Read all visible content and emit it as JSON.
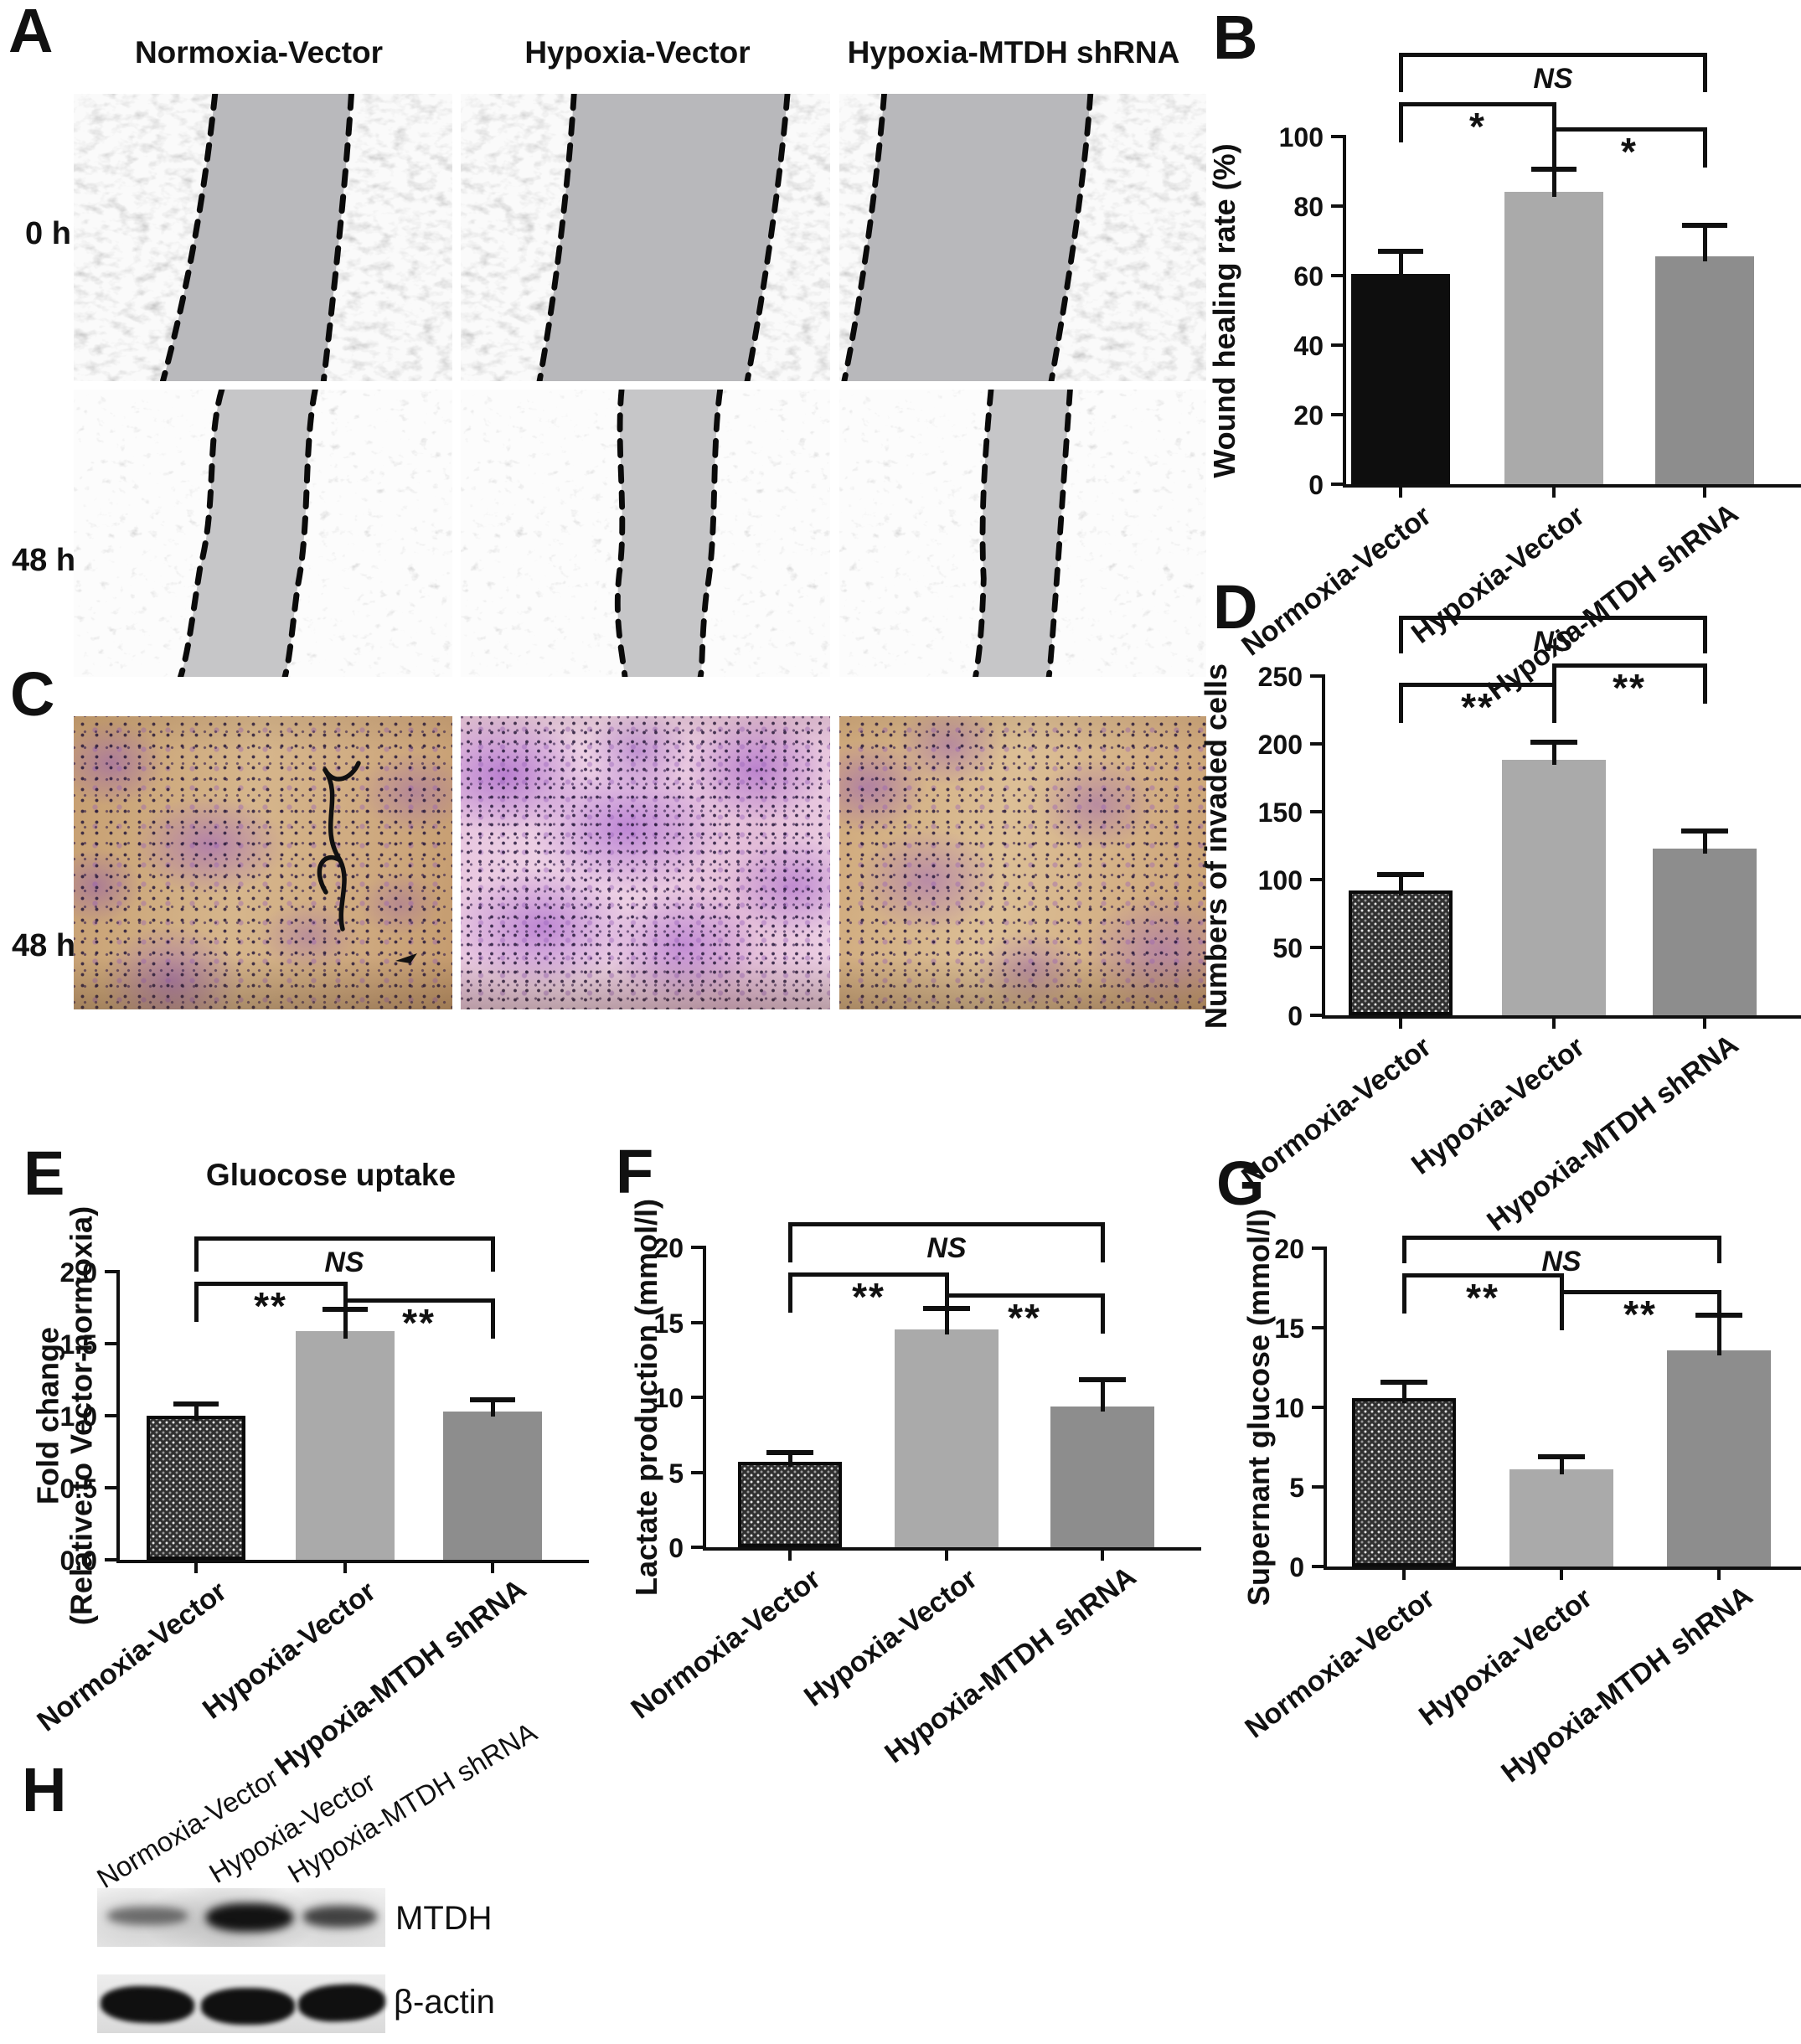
{
  "groups": [
    "Normoxia-Vector",
    "Hypoxia-Vector",
    "Hypoxia-MTDH shRNA"
  ],
  "panels": {
    "A": {
      "letter": "A",
      "column_titles": [
        "Normoxia-Vector",
        "Hypoxia-Vector",
        "Hypoxia-MTDH shRNA"
      ],
      "row_labels": [
        "0 h",
        "48 h"
      ]
    },
    "B": {
      "letter": "B"
    },
    "C": {
      "letter": "C",
      "row_label": "48 h"
    },
    "D": {
      "letter": "D"
    },
    "E": {
      "letter": "E"
    },
    "F": {
      "letter": "F"
    },
    "G": {
      "letter": "G"
    },
    "H": {
      "letter": "H",
      "lane_labels": [
        "Normoxia-Vector",
        "Hypoxia-Vector",
        "Hypoxia-MTDH shRNA"
      ],
      "blot_labels": [
        "MTDH",
        "β-actin"
      ]
    }
  },
  "chart_data": [
    {
      "id": "B",
      "type": "bar",
      "title": "",
      "ylabel": "Wound healing rate (%)",
      "categories": [
        "Normoxia-Vector",
        "Hypoxia-Vector",
        "Hypoxia-MTDH shRNA"
      ],
      "values": [
        60.5,
        84,
        65.5
      ],
      "errors": [
        6.5,
        6.5,
        9
      ],
      "yticks": [
        "0",
        "20",
        "40",
        "60",
        "80",
        "100"
      ],
      "ylim": [
        0,
        100
      ],
      "bar_styles": [
        "black",
        "light",
        "mid"
      ],
      "error_direction": "up",
      "legend": "none",
      "grid": "off",
      "significance": [
        {
          "between": [
            0,
            2
          ],
          "label": "NS",
          "tier": 0
        },
        {
          "between": [
            0,
            1
          ],
          "label": "*",
          "tier": 1
        },
        {
          "between": [
            1,
            2
          ],
          "label": "*",
          "tier": 2
        }
      ]
    },
    {
      "id": "D",
      "type": "bar",
      "title": "",
      "ylabel": "Numbers of invaded cells",
      "categories": [
        "Normoxia-Vector",
        "Hypoxia-Vector",
        "Hypoxia-MTDH shRNA"
      ],
      "values": [
        92,
        188,
        123
      ],
      "errors": [
        12,
        13,
        13
      ],
      "yticks": [
        "0",
        "50",
        "100",
        "150",
        "200",
        "250"
      ],
      "ylim": [
        0,
        250
      ],
      "bar_styles": [
        "hatch",
        "light",
        "mid"
      ],
      "error_direction": "up",
      "legend": "none",
      "grid": "off",
      "significance": [
        {
          "between": [
            0,
            2
          ],
          "label": "NS",
          "tier": 0
        },
        {
          "between": [
            0,
            1
          ],
          "label": "**",
          "tier": 2
        },
        {
          "between": [
            1,
            2
          ],
          "label": "**",
          "tier": 1
        }
      ]
    },
    {
      "id": "E",
      "type": "bar",
      "title": "Gluocose uptake",
      "ylabel_lines": [
        "Fold change",
        "(Relative to Vector-normoxia)"
      ],
      "categories": [
        "Normoxia-Vector",
        "Hypoxia-Vector",
        "Hypoxia-MTDH shRNA"
      ],
      "values": [
        1.0,
        1.59,
        1.03
      ],
      "errors": [
        0.08,
        0.15,
        0.08
      ],
      "yticks": [
        "0.0",
        "0.5",
        "1.0",
        "1.5",
        "2.0"
      ],
      "ylim": [
        0,
        2
      ],
      "bar_styles": [
        "hatch",
        "light",
        "mid"
      ],
      "error_direction": "up",
      "legend": "none",
      "grid": "off",
      "significance": [
        {
          "between": [
            0,
            2
          ],
          "label": "NS",
          "tier": 0
        },
        {
          "between": [
            0,
            1
          ],
          "label": "**",
          "tier": 1
        },
        {
          "between": [
            1,
            2
          ],
          "label": "**",
          "tier": 2
        }
      ]
    },
    {
      "id": "F",
      "type": "bar",
      "title": "",
      "ylabel": "Lactate production (mmol/l)",
      "categories": [
        "Normoxia-Vector",
        "Hypoxia-Vector",
        "Hypoxia-MTDH shRNA"
      ],
      "values": [
        5.7,
        14.5,
        9.4
      ],
      "errors": [
        0.6,
        1.4,
        1.8
      ],
      "yticks": [
        "0",
        "5",
        "10",
        "15",
        "20"
      ],
      "ylim": [
        0,
        20
      ],
      "bar_styles": [
        "hatch",
        "light",
        "mid"
      ],
      "error_direction": "up",
      "legend": "none",
      "grid": "off",
      "significance": [
        {
          "between": [
            0,
            2
          ],
          "label": "NS",
          "tier": 0
        },
        {
          "between": [
            0,
            1
          ],
          "label": "**",
          "tier": 1
        },
        {
          "between": [
            1,
            2
          ],
          "label": "**",
          "tier": 2
        }
      ]
    },
    {
      "id": "G",
      "type": "bar",
      "title": "",
      "ylabel": "Supernant glucose (mmol/l)",
      "categories": [
        "Normoxia-Vector",
        "Hypoxia-Vector",
        "Hypoxia-MTDH shRNA"
      ],
      "values": [
        10.6,
        6.1,
        13.6
      ],
      "errors": [
        1.0,
        0.8,
        2.2
      ],
      "yticks": [
        "0",
        "5",
        "10",
        "15",
        "20"
      ],
      "ylim": [
        0,
        20
      ],
      "bar_styles": [
        "hatch",
        "light",
        "mid"
      ],
      "error_direction": "up",
      "legend": "none",
      "grid": "off",
      "significance": [
        {
          "between": [
            0,
            2
          ],
          "label": "NS",
          "tier": 0
        },
        {
          "between": [
            0,
            1
          ],
          "label": "**",
          "tier": 1
        },
        {
          "between": [
            1,
            2
          ],
          "label": "**",
          "tier": 2
        }
      ]
    }
  ],
  "colors": {
    "bar_black": "#0e0e0e",
    "bar_light_gray": "#aaaaaa",
    "bar_mid_gray": "#8d8d8d",
    "stain_purple": "#a05ec5",
    "membrane_tan": "#cfa87c",
    "membrane_pink": "#e6c2dc",
    "axis_black": "#101010"
  }
}
